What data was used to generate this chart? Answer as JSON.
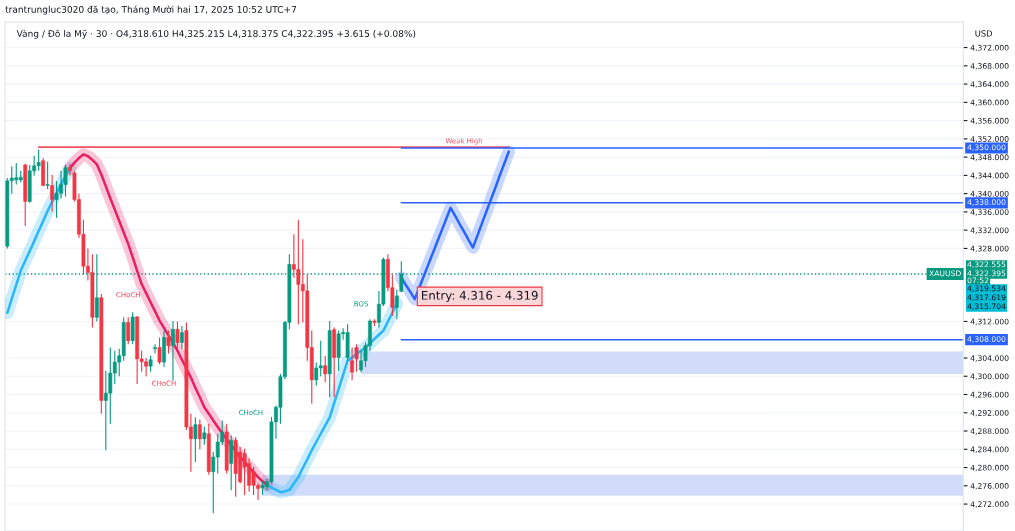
{
  "chart_data": {
    "type": "candlestick",
    "title": "trantrungluc3020 đã tạo, Tháng Mười hai 17, 2025 10:52 UTC+7",
    "subtitle": "Vàng / Đô la Mỹ · 30 · O4,318.610 H4,325.215 L4,318.375 C4,322.395 +3.615 (+0.08%)",
    "ylabel": "USD",
    "categories": [
      null,
      null,
      null,
      null,
      null,
      null,
      null,
      null,
      null,
      null,
      null,
      null,
      null,
      null,
      null,
      null,
      null,
      null,
      null,
      null,
      null,
      null,
      null,
      null,
      null,
      null,
      null,
      null,
      null,
      null,
      null,
      null,
      null,
      null,
      null,
      null,
      null,
      null,
      null,
      null,
      null,
      null,
      null,
      null,
      null,
      null,
      null,
      null,
      null,
      null,
      null,
      null,
      null,
      null,
      null,
      null,
      null,
      null,
      null,
      null,
      null,
      null,
      null,
      null,
      null,
      null,
      null,
      null,
      null,
      null,
      null,
      null,
      null,
      null,
      null,
      null,
      null,
      null,
      null,
      null,
      null,
      null,
      null,
      null,
      null,
      null,
      null,
      null,
      null,
      null,
      null,
      null,
      null,
      null,
      null,
      null,
      null,
      null,
      null,
      null,
      null,
      null,
      null,
      null,
      null,
      null,
      null,
      null,
      null,
      null,
      null,
      null,
      null,
      null,
      null,
      null,
      null,
      null,
      null,
      null,
      null,
      null,
      null,
      null,
      null,
      null,
      null,
      null,
      null,
      null,
      null,
      null,
      null,
      null,
      null,
      null,
      null,
      null,
      null,
      null,
      null,
      null,
      null,
      null,
      null,
      null,
      null,
      null,
      null,
      null,
      null,
      null,
      null,
      null,
      null,
      null,
      null,
      null,
      null,
      null,
      null,
      null,
      null,
      null,
      null,
      null,
      null,
      null,
      null,
      null,
      null,
      null,
      null,
      null,
      null,
      null,
      null,
      null,
      null,
      null,
      null,
      null,
      null,
      null,
      null,
      null,
      null,
      null,
      null,
      null,
      null,
      null,
      null,
      null,
      null,
      null,
      null,
      null,
      null,
      null,
      null,
      null,
      null,
      null,
      null,
      null,
      null,
      null,
      null,
      null,
      null,
      null,
      null,
      null
    ],
    "ohlc": [
      [
        4328.5,
        4343.4,
        4328.0,
        4342.8
      ],
      [
        4342.8,
        4346.0,
        4340.0,
        4343.4
      ],
      [
        4343.0,
        4346.7,
        4342.0,
        4343.5
      ],
      [
        4343.0,
        4345.0,
        4342.5,
        4343.6
      ],
      [
        4346.3,
        4346.5,
        4332.9,
        4338.3
      ],
      [
        4338.3,
        4346.3,
        4338.0,
        4345.0
      ],
      [
        4345.0,
        4348.3,
        4344.0,
        4346.1
      ],
      [
        4346.1,
        4349.6,
        4345.0,
        4346.8
      ],
      [
        4347.2,
        4347.8,
        4341.6,
        4341.8
      ],
      [
        4341.8,
        4347.0,
        4341.0,
        4342.0
      ],
      [
        4341.8,
        4344.1,
        4336.1,
        4338.7
      ],
      [
        4338.7,
        4342.7,
        4334.7,
        4340.1
      ],
      [
        4340.1,
        4345.0,
        4339.0,
        4342.0
      ],
      [
        4342.0,
        4346.3,
        4339.4,
        4345.7
      ],
      [
        4345.7,
        4346.5,
        4344.0,
        4345.0
      ],
      [
        4344.5,
        4344.9,
        4338.3,
        4338.7
      ],
      [
        4338.7,
        4340.0,
        4330.3,
        4331.1
      ],
      [
        4331.1,
        4334.3,
        4322.3,
        4324.1
      ],
      [
        4324.1,
        4328.0,
        4321.0,
        4322.7
      ],
      [
        4322.7,
        4326.7,
        4310.7,
        4312.9
      ],
      [
        4312.9,
        4326.7,
        4312.0,
        4317.2
      ],
      [
        4317.2,
        4318.0,
        4291.8,
        4294.7
      ],
      [
        4294.7,
        4301.2,
        4283.8,
        4296.3
      ],
      [
        4296.3,
        4306.3,
        4289.6,
        4300.7
      ],
      [
        4300.7,
        4305.6,
        4298.3,
        4303.1
      ],
      [
        4303.1,
        4306.0,
        4300.0,
        4304.5
      ],
      [
        4304.5,
        4312.9,
        4303.4,
        4311.8
      ],
      [
        4311.8,
        4312.9,
        4307.0,
        4307.8
      ],
      [
        4307.8,
        4314.0,
        4307.0,
        4313.0
      ],
      [
        4313.0,
        4313.2,
        4298.3,
        4303.8
      ],
      [
        4303.8,
        4305.6,
        4301.0,
        4303.2
      ],
      [
        4303.2,
        4304.0,
        4300.0,
        4302.2
      ],
      [
        4302.2,
        4304.5,
        4301.0,
        4303.6
      ],
      [
        4306.0,
        4307.0,
        4305.0,
        4306.3
      ],
      [
        4306.3,
        4308.5,
        4302.7,
        4303.1
      ],
      [
        4303.1,
        4310.0,
        4302.0,
        4308.5
      ],
      [
        4308.5,
        4310.0,
        4305.0,
        4306.7
      ],
      [
        4306.7,
        4312.1,
        4299.0,
        4310.3
      ],
      [
        4310.3,
        4312.0,
        4306.0,
        4307.4
      ],
      [
        4307.4,
        4311.0,
        4306.0,
        4309.6
      ],
      [
        4310.0,
        4311.8,
        4288.2,
        4288.9
      ],
      [
        4288.9,
        4291.8,
        4279.1,
        4286.3
      ],
      [
        4286.3,
        4291.0,
        4281.2,
        4289.4
      ],
      [
        4289.4,
        4290.5,
        4284.0,
        4286.3
      ],
      [
        4286.3,
        4289.0,
        4285.0,
        4287.6
      ],
      [
        4287.4,
        4289.6,
        4278.4,
        4279.1
      ],
      [
        4279.1,
        4283.4,
        4270.0,
        4282.3
      ],
      [
        4282.3,
        4287.4,
        4278.7,
        4285.6
      ],
      [
        4285.6,
        4290.3,
        4284.9,
        4287.8
      ],
      [
        4287.8,
        4289.6,
        4278.7,
        4279.4
      ],
      [
        4280.9,
        4287.0,
        4275.0,
        4286.0
      ],
      [
        4286.0,
        4286.7,
        4273.6,
        4278.7
      ],
      [
        4283.4,
        4284.5,
        4276.5,
        4276.9
      ],
      [
        4283.1,
        4284.1,
        4274.0,
        4280.1
      ],
      [
        4280.9,
        4282.0,
        4274.7,
        4276.1
      ],
      [
        4279.1,
        4280.1,
        4274.0,
        4276.1
      ],
      [
        4276.1,
        4276.5,
        4272.9,
        4275.4
      ],
      [
        4275.6,
        4277.0,
        4274.0,
        4276.1
      ],
      [
        4275.8,
        4277.5,
        4275.0,
        4276.9
      ],
      [
        4276.9,
        4291.1,
        4276.5,
        4290.0
      ],
      [
        4290.0,
        4293.6,
        4286.3,
        4293.2
      ],
      [
        4293.2,
        4300.5,
        4289.6,
        4299.9
      ],
      [
        4299.9,
        4312.1,
        4299.4,
        4311.8
      ],
      [
        4311.8,
        4326.7,
        4310.3,
        4324.5
      ],
      [
        4324.5,
        4331.1,
        4321.6,
        4323.4
      ],
      [
        4323.4,
        4334.3,
        4311.4,
        4320.1
      ],
      [
        4320.1,
        4330.0,
        4311.8,
        4318.7
      ],
      [
        4318.7,
        4322.3,
        4303.4,
        4306.3
      ],
      [
        4306.3,
        4310.0,
        4294.0,
        4299.2
      ],
      [
        4299.2,
        4303.0,
        4298.0,
        4301.8
      ],
      [
        4301.8,
        4307.8,
        4300.0,
        4302.3
      ],
      [
        4302.3,
        4304.5,
        4298.7,
        4300.5
      ],
      [
        4300.5,
        4312.1,
        4295.4,
        4310.0
      ],
      [
        4310.2,
        4310.7,
        4295.4,
        4304.1
      ],
      [
        4304.1,
        4310.0,
        4301.2,
        4309.3
      ],
      [
        4309.3,
        4310.5,
        4308.0,
        4309.6
      ],
      [
        4304.1,
        4311.4,
        4303.4,
        4309.6
      ],
      [
        4303.4,
        4306.3,
        4299.1,
        4300.9
      ],
      [
        4306.3,
        4307.0,
        4301.0,
        4303.8
      ],
      [
        4301.4,
        4305.6,
        4300.9,
        4303.4
      ],
      [
        4303.4,
        4307.4,
        4302.0,
        4306.7
      ],
      [
        4306.7,
        4312.5,
        4305.6,
        4312.1
      ],
      [
        4312.1,
        4312.5,
        4311.0,
        4311.8
      ],
      [
        4311.8,
        4318.7,
        4310.7,
        4315.8
      ],
      [
        4315.8,
        4326.0,
        4315.4,
        4325.6
      ],
      [
        4325.6,
        4326.7,
        4318.7,
        4319.4
      ],
      [
        4319.4,
        4322.3,
        4313.2,
        4315.1
      ],
      [
        4315.1,
        4319.0,
        4312.5,
        4317.6
      ],
      [
        4318.61,
        4325.215,
        4318.375,
        4322.395
      ],
      null,
      null,
      null,
      null,
      null,
      null,
      null,
      null,
      null,
      null,
      null,
      null,
      null,
      null,
      null,
      null,
      null,
      null,
      null,
      null,
      null,
      null,
      null,
      null,
      null,
      null,
      null,
      null,
      null,
      null,
      null,
      null,
      null,
      null,
      null,
      null,
      null,
      null,
      null,
      null,
      null,
      null,
      null,
      null,
      null,
      null,
      null,
      null,
      null,
      null,
      null,
      null,
      null,
      null,
      null,
      null,
      null,
      null,
      null,
      null,
      null,
      null,
      null,
      null,
      null,
      null,
      null,
      null,
      null,
      null,
      null,
      null,
      null,
      null,
      null,
      null,
      null,
      null,
      null,
      null,
      null,
      null,
      null,
      null,
      null,
      null,
      null,
      null,
      null,
      null,
      null,
      null,
      null,
      null,
      null,
      null,
      null,
      null,
      null,
      null,
      null,
      null,
      null,
      null,
      null,
      null,
      null,
      null,
      null,
      null,
      null,
      null,
      null,
      null,
      null,
      null,
      null,
      null,
      null,
      null,
      null,
      null,
      null,
      null,
      null
    ],
    "series": [
      {
        "type": "line",
        "color": "#29b6f6",
        "values": [
          4313.9,
          4317.0,
          4320.0,
          4323.1,
          4325.3,
          4327.4,
          4329.6,
          4331.8,
          4334.0,
          4336.2,
          4338.2,
          4340.1,
          4342.1,
          4343.9,
          4345.6,
          null,
          null,
          null,
          null,
          null,
          null,
          null,
          null,
          null,
          null,
          null,
          null,
          null,
          null,
          null,
          null,
          null,
          null,
          null,
          null,
          null,
          null,
          null,
          null,
          null,
          null,
          null,
          null,
          null,
          null,
          null,
          null,
          null,
          null,
          null,
          null,
          null,
          null,
          null,
          null,
          null,
          null,
          null,
          4276.2,
          4275.6,
          4275.1,
          4274.6,
          4274.8,
          4275.1,
          4276.5,
          4277.9,
          4279.9,
          4281.8,
          4283.8,
          4285.6,
          4287.4,
          4289.2,
          4291.0,
          4294.1,
          4297.2,
          4300.3,
          4303.4,
          4304.1,
          4304.9,
          4305.6,
          4306.3,
          4307.2,
          4308.2,
          4309.1,
          4310.0,
          4312.0,
          4313.9,
          4315.9,
          null,
          null,
          null,
          null,
          null,
          null,
          null,
          null,
          null,
          null,
          null,
          null,
          null,
          null,
          null,
          null,
          null,
          null,
          null,
          null,
          null,
          null,
          null,
          null,
          null,
          null,
          null,
          null,
          null,
          null,
          null,
          null,
          null,
          null,
          null,
          null,
          null,
          null,
          null,
          null,
          null,
          null,
          null,
          null,
          null,
          null,
          null,
          null,
          null,
          null,
          null,
          null,
          null,
          null,
          null,
          null,
          null,
          null,
          null,
          null,
          null,
          null,
          null,
          null,
          null,
          null,
          null,
          null,
          null,
          null,
          null,
          null,
          null,
          null,
          null,
          null,
          null,
          null,
          null,
          null,
          null,
          null,
          null,
          null,
          null,
          null,
          null,
          null,
          null,
          null,
          null,
          null,
          null,
          null,
          null,
          null,
          null,
          null,
          null,
          null,
          null,
          null,
          null,
          null,
          null,
          null,
          null,
          null,
          null,
          null,
          null,
          null,
          null,
          null,
          null,
          null,
          null,
          null,
          null,
          null,
          null,
          null,
          null,
          null,
          null,
          null
        ]
      },
      {
        "type": "line",
        "color": "#e91e63",
        "values": [
          null,
          null,
          null,
          null,
          null,
          null,
          null,
          null,
          null,
          null,
          null,
          null,
          null,
          null,
          4345.6,
          4346.8,
          4347.8,
          4348.6,
          4348.2,
          4347.4,
          4346.4,
          4344.2,
          4341.6,
          4339.0,
          4336.5,
          4334.0,
          4331.5,
          4329.0,
          4326.1,
          4323.1,
          4320.2,
          4318.2,
          4316.2,
          4314.2,
          4312.2,
          4310.6,
          4308.9,
          4307.3,
          4305.6,
          4303.6,
          4301.7,
          4299.7,
          4297.5,
          4295.4,
          4293.2,
          4291.8,
          4290.3,
          4288.9,
          4287.5,
          4286.2,
          4284.9,
          4283.6,
          4282.3,
          4281.2,
          4280.1,
          4279.0,
          4277.9,
          4277.0,
          4276.2,
          null,
          null,
          null,
          null,
          null,
          null,
          null,
          null,
          null,
          null,
          null,
          null,
          null,
          null,
          null,
          null,
          null,
          null,
          null,
          null,
          null,
          null,
          null,
          null,
          null,
          null,
          null,
          null,
          null,
          null,
          null,
          null,
          null,
          null,
          null,
          null,
          null,
          null,
          null,
          null,
          null,
          null,
          null,
          null,
          null,
          null,
          null,
          null,
          null,
          null,
          null,
          null,
          null,
          null,
          null,
          null,
          null,
          null,
          null,
          null,
          null,
          null,
          null,
          null,
          null,
          null,
          null,
          null,
          null,
          null,
          null,
          null,
          null,
          null,
          null,
          null,
          null,
          null,
          null,
          null,
          null,
          null,
          null,
          null,
          null,
          null,
          null,
          null,
          null,
          null,
          null,
          null,
          null,
          null,
          null,
          null,
          null,
          null,
          null,
          null,
          null,
          null,
          null,
          null,
          null,
          null,
          null,
          null,
          null,
          null,
          null,
          null,
          null,
          null,
          null,
          null,
          null,
          null,
          null,
          null,
          null,
          null,
          null,
          null,
          null,
          null,
          null,
          null,
          null,
          null,
          null,
          null,
          null,
          null,
          null,
          null,
          null,
          null,
          null,
          null,
          null,
          null,
          null,
          null,
          null,
          null,
          null,
          null,
          null,
          null,
          null,
          null,
          null,
          null,
          null
        ]
      },
      {
        "type": "line",
        "color": "#2962ff",
        "values": [
          null,
          null,
          null,
          null,
          null,
          null,
          null,
          null,
          null,
          null,
          null,
          null,
          null,
          null,
          null,
          null,
          null,
          null,
          null,
          null,
          null,
          null,
          null,
          null,
          null,
          null,
          null,
          null,
          null,
          null,
          null,
          null,
          null,
          null,
          null,
          null,
          null,
          null,
          null,
          null,
          null,
          null,
          null,
          null,
          null,
          null,
          null,
          null,
          null,
          null,
          null,
          null,
          null,
          null,
          null,
          null,
          null,
          null,
          null,
          null,
          null,
          null,
          null,
          null,
          null,
          null,
          null,
          null,
          null,
          null,
          null,
          null,
          null,
          null,
          null,
          null,
          null,
          null,
          null,
          null,
          null,
          null,
          null,
          null,
          null,
          null,
          null,
          null,
          4321.6,
          4320.0,
          4318.5,
          4316.9,
          4319.4,
          4321.9,
          4324.4,
          4326.9,
          4329.4,
          4331.9,
          4334.4,
          4336.9,
          4335.2,
          4333.4,
          4331.7,
          4329.9,
          4328.2,
          4330.8,
          4333.5,
          4336.1,
          4338.7,
          4341.3,
          4344.0,
          4346.6,
          4349.2,
          null,
          null,
          null,
          null,
          null,
          null,
          null,
          null,
          null,
          null,
          null,
          null,
          null,
          null,
          null,
          null,
          null,
          null,
          null,
          null,
          null,
          null,
          null,
          null,
          null,
          null,
          null,
          null,
          null,
          null,
          null,
          null,
          null,
          null,
          null,
          null,
          null,
          null,
          null,
          null,
          null,
          null,
          null,
          null,
          null,
          null,
          null,
          null,
          null,
          null,
          null,
          null,
          null,
          null,
          null,
          null,
          null,
          null,
          null,
          null,
          null,
          null,
          null,
          null,
          null,
          null,
          null,
          null,
          null,
          null,
          null,
          null,
          null,
          null,
          null,
          null,
          null,
          null,
          null,
          null,
          null,
          null,
          null,
          null,
          null,
          null,
          null,
          null,
          null,
          null,
          null,
          null,
          null,
          null,
          null,
          null,
          null,
          null,
          null,
          null,
          null
        ]
      }
    ],
    "ylim": [
      4266.1,
      4377.6
    ],
    "yticks": [
      {
        "value": 4272,
        "label": "4,272.000"
      },
      {
        "value": 4276,
        "label": "4,276.000"
      },
      {
        "value": 4280,
        "label": "4,280.000"
      },
      {
        "value": 4284,
        "label": "4,284.000"
      },
      {
        "value": 4288,
        "label": "4,288.000"
      },
      {
        "value": 4292,
        "label": "4,292.000"
      },
      {
        "value": 4296,
        "label": "4,296.000"
      },
      {
        "value": 4300,
        "label": "4,300.000"
      },
      {
        "value": 4304,
        "label": "4,304.000"
      },
      {
        "value": 4312,
        "label": "4,312.000"
      },
      {
        "value": 4328,
        "label": "4,328.000"
      },
      {
        "value": 4332,
        "label": "4,332.000"
      },
      {
        "value": 4336,
        "label": "4,336.000"
      },
      {
        "value": 4340,
        "label": "4,340.000"
      },
      {
        "value": 4344,
        "label": "4,344.000"
      },
      {
        "value": 4348,
        "label": "4,348.000"
      },
      {
        "value": 4352,
        "label": "4,352.000"
      },
      {
        "value": 4356,
        "label": "4,356.000"
      },
      {
        "value": 4360,
        "label": "4,360.000"
      },
      {
        "value": 4364,
        "label": "4,364.000"
      },
      {
        "value": 4368,
        "label": "4,368.000"
      },
      {
        "value": 4372,
        "label": "4,372.000"
      }
    ],
    "ref_lines": [
      {
        "axis": "y",
        "value": 4350.2,
        "label": "Weak High",
        "color": "#f7525f"
      },
      {
        "axis": "y",
        "value": 4350,
        "label": "4,350.000",
        "color": "#2962ff"
      },
      {
        "axis": "y",
        "value": 4338,
        "label": "4,338.000",
        "color": "#2962ff"
      },
      {
        "axis": "y",
        "value": 4308,
        "label": "4,308.000",
        "color": "#2962ff"
      },
      {
        "axis": "y",
        "value": 4322.395,
        "color": "#089981",
        "line_style": "dotted"
      }
    ],
    "bands": [
      {
        "axis": "y",
        "from": 4300.5,
        "to": 4305.4,
        "color": "#d1dcfb"
      },
      {
        "axis": "y",
        "from": 4273.8,
        "to": 4278.4,
        "color": "#d1dcfb"
      }
    ],
    "annotations": [
      "Entry: 4.316 - 4.319",
      "CHoCH",
      "CHoCH",
      "CHoCH",
      "BOS",
      "XAUUSD",
      "4,322.555",
      "4,322.395",
      "07:52",
      "4,319.534",
      "4,317.619",
      "4,315.704"
    ],
    "grid": "y",
    "legend": false,
    "tick_labels": "y"
  }
}
